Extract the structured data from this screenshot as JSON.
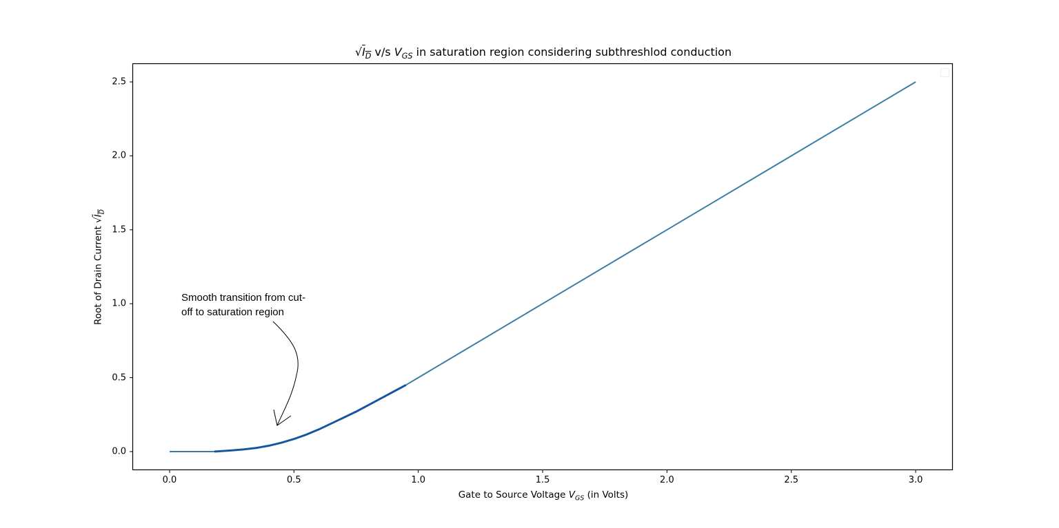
{
  "chart_data": {
    "type": "line",
    "title": "√I_D v/s V_GS in saturation region considering subthreshlod conduction",
    "title_parts": {
      "sqrt_symbol": "√",
      "id_var": "I",
      "id_sub": "D",
      "mid": " v/s ",
      "vgs_var": "V",
      "vgs_sub": "GS",
      "rest": " in saturation region considering subthreshlod conduction"
    },
    "xlabel": "Gate to Source Voltage V_GS (in Volts)",
    "xlabel_parts": {
      "pre": "Gate to Source Voltage ",
      "var": "V",
      "sub": "GS",
      "post": " (in Volts)"
    },
    "ylabel": "Root of Drain Current √I_D",
    "ylabel_parts": {
      "pre": "Root of Drain Current ",
      "sqrt": "√",
      "var": "I",
      "sub": "D"
    },
    "xlim": [
      -0.145,
      3.15
    ],
    "ylim": [
      -0.125,
      2.62
    ],
    "xticks": [
      "0.0",
      "0.5",
      "1.0",
      "1.5",
      "2.0",
      "2.5",
      "3.0"
    ],
    "yticks": [
      "0.0",
      "0.5",
      "1.0",
      "1.5",
      "2.0",
      "2.5"
    ],
    "grid": false,
    "legend": {
      "position": "upper right",
      "entries": []
    },
    "series": [
      {
        "name": "sqrt(I_D)",
        "color": "#3a7ca5",
        "x": [
          0.0,
          0.18,
          0.25,
          0.3,
          0.35,
          0.4,
          0.45,
          0.5,
          0.55,
          0.6,
          0.65,
          0.7,
          0.75,
          0.8,
          0.85,
          0.9,
          0.95,
          1.0,
          1.5,
          2.0,
          2.5,
          3.0
        ],
        "y": [
          0.0,
          0.0,
          0.008,
          0.015,
          0.025,
          0.04,
          0.06,
          0.085,
          0.115,
          0.15,
          0.19,
          0.23,
          0.27,
          0.315,
          0.36,
          0.405,
          0.45,
          0.5,
          1.0,
          1.5,
          2.0,
          2.5
        ]
      }
    ],
    "highlight_overlay": {
      "color": "#0d4f9c",
      "x_range": [
        0.18,
        0.97
      ]
    },
    "annotations": [
      {
        "text": "Smooth transition from cut-off to saturation region",
        "lines": [
          "Smooth transition from cut-",
          "off to saturation region"
        ],
        "arrow_to": [
          0.43,
          0.17
        ]
      }
    ]
  }
}
